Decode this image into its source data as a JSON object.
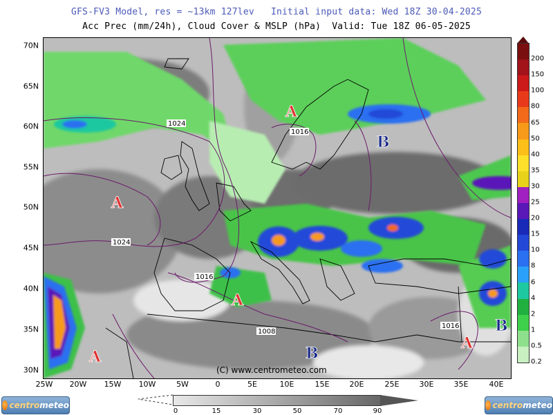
{
  "header": {
    "line1": "GFS-FV3 Model, res = ~13km 127lev   Initial input data: Wed 18Z 30-04-2025",
    "line2": "Acc Prec (mm/24h), Cloud Cover & MSLP (hPa)  Valid: Tue 18Z 06-05-2025"
  },
  "map": {
    "lat_labels": [
      "70N",
      "65N",
      "60N",
      "55N",
      "50N",
      "45N",
      "40N",
      "35N",
      "30N"
    ],
    "lon_labels": [
      "25W",
      "20W",
      "15W",
      "10W",
      "5W",
      "0",
      "5E",
      "10E",
      "15E",
      "20E",
      "25E",
      "30E",
      "35E",
      "40E"
    ],
    "copyright": "(C) www.centrometeo.com",
    "pressure_centers": [
      {
        "letter": "A",
        "type": "high"
      },
      {
        "letter": "A",
        "type": "high"
      },
      {
        "letter": "A",
        "type": "high"
      },
      {
        "letter": "A",
        "type": "high"
      },
      {
        "letter": "A",
        "type": "high"
      },
      {
        "letter": "B",
        "type": "low"
      },
      {
        "letter": "B",
        "type": "low"
      },
      {
        "letter": "B",
        "type": "low"
      }
    ],
    "isobar_labels": [
      "1024",
      "1024",
      "1016",
      "1016",
      "1016",
      "1008"
    ]
  },
  "precip_legend": {
    "labels": [
      "200",
      "150",
      "100",
      "80",
      "65",
      "50",
      "40",
      "35",
      "30",
      "25",
      "20",
      "15",
      "10",
      "8",
      "6",
      "4",
      "2",
      "1",
      "0.5",
      "0.2"
    ],
    "colors": [
      "#7a0f0f",
      "#a0141a",
      "#cc1a1a",
      "#e83a1a",
      "#f26a1a",
      "#f79a1a",
      "#fbbf1a",
      "#fde02a",
      "#e8d21a",
      "#a020c0",
      "#5a18b8",
      "#1a2ab8",
      "#2348d8",
      "#2a70f0",
      "#2aa0f8",
      "#1ec8a0",
      "#20b040",
      "#3ed04a",
      "#8ee08c",
      "#c8f0c0"
    ]
  },
  "cloud_legend": {
    "labels": [
      "0",
      "15",
      "30",
      "50",
      "70",
      "90"
    ]
  },
  "logos": {
    "left": {
      "pre": "centro",
      "post": "meteo"
    },
    "right": {
      "pre": "centro",
      "post": "meteo"
    }
  },
  "colors": {
    "header_accent": "#4b5ab8",
    "high_pressure": "#e03030",
    "low_pressure": "#1a2a8a",
    "isobar": "#6a1a6a"
  }
}
